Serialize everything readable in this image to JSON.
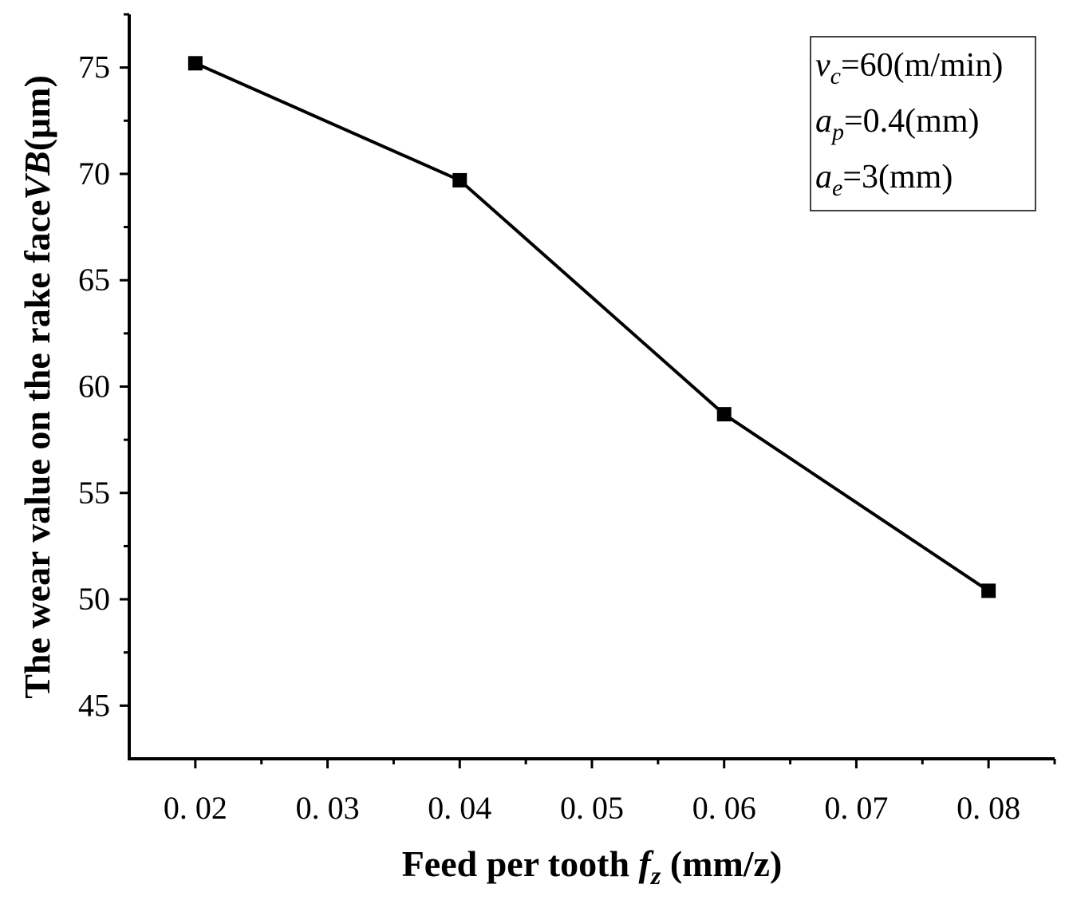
{
  "chart_data": {
    "type": "line",
    "x": [
      0.02,
      0.04,
      0.06,
      0.08
    ],
    "series": [
      {
        "values": [
          75.2,
          69.7,
          58.7,
          50.4
        ],
        "marker": "square",
        "color": "#000000"
      }
    ],
    "xlim": [
      0.015,
      0.085
    ],
    "ylim": [
      42.5,
      77.5
    ],
    "xticks": [
      0.02,
      0.03,
      0.04,
      0.05,
      0.06,
      0.07,
      0.08
    ],
    "xtick_labels": [
      "0. 02",
      "0. 03",
      "0. 04",
      "0. 05",
      "0. 06",
      "0. 07",
      "0. 08"
    ],
    "yticks": [
      45,
      50,
      55,
      60,
      65,
      70,
      75
    ],
    "ytick_labels": [
      "45",
      "50",
      "55",
      "60",
      "65",
      "70",
      "75"
    ],
    "xlabel": {
      "prefix": "Feed per tooth ",
      "symbol": "f",
      "subscript": "z",
      "suffix": " (mm/z)"
    },
    "ylabel": {
      "prefix": "The wear value on the rake face",
      "symbol": "VB",
      "suffix": "(μm)"
    },
    "grid": false,
    "annotation_box": {
      "placement": "top-right",
      "lines": [
        {
          "symbol": "v",
          "subscript": "c",
          "text": "=60(m/min)"
        },
        {
          "symbol": "a",
          "subscript": "p",
          "text": "=0.4(mm)"
        },
        {
          "symbol": "a",
          "subscript": "e",
          "text": "=3(mm)"
        }
      ]
    }
  }
}
